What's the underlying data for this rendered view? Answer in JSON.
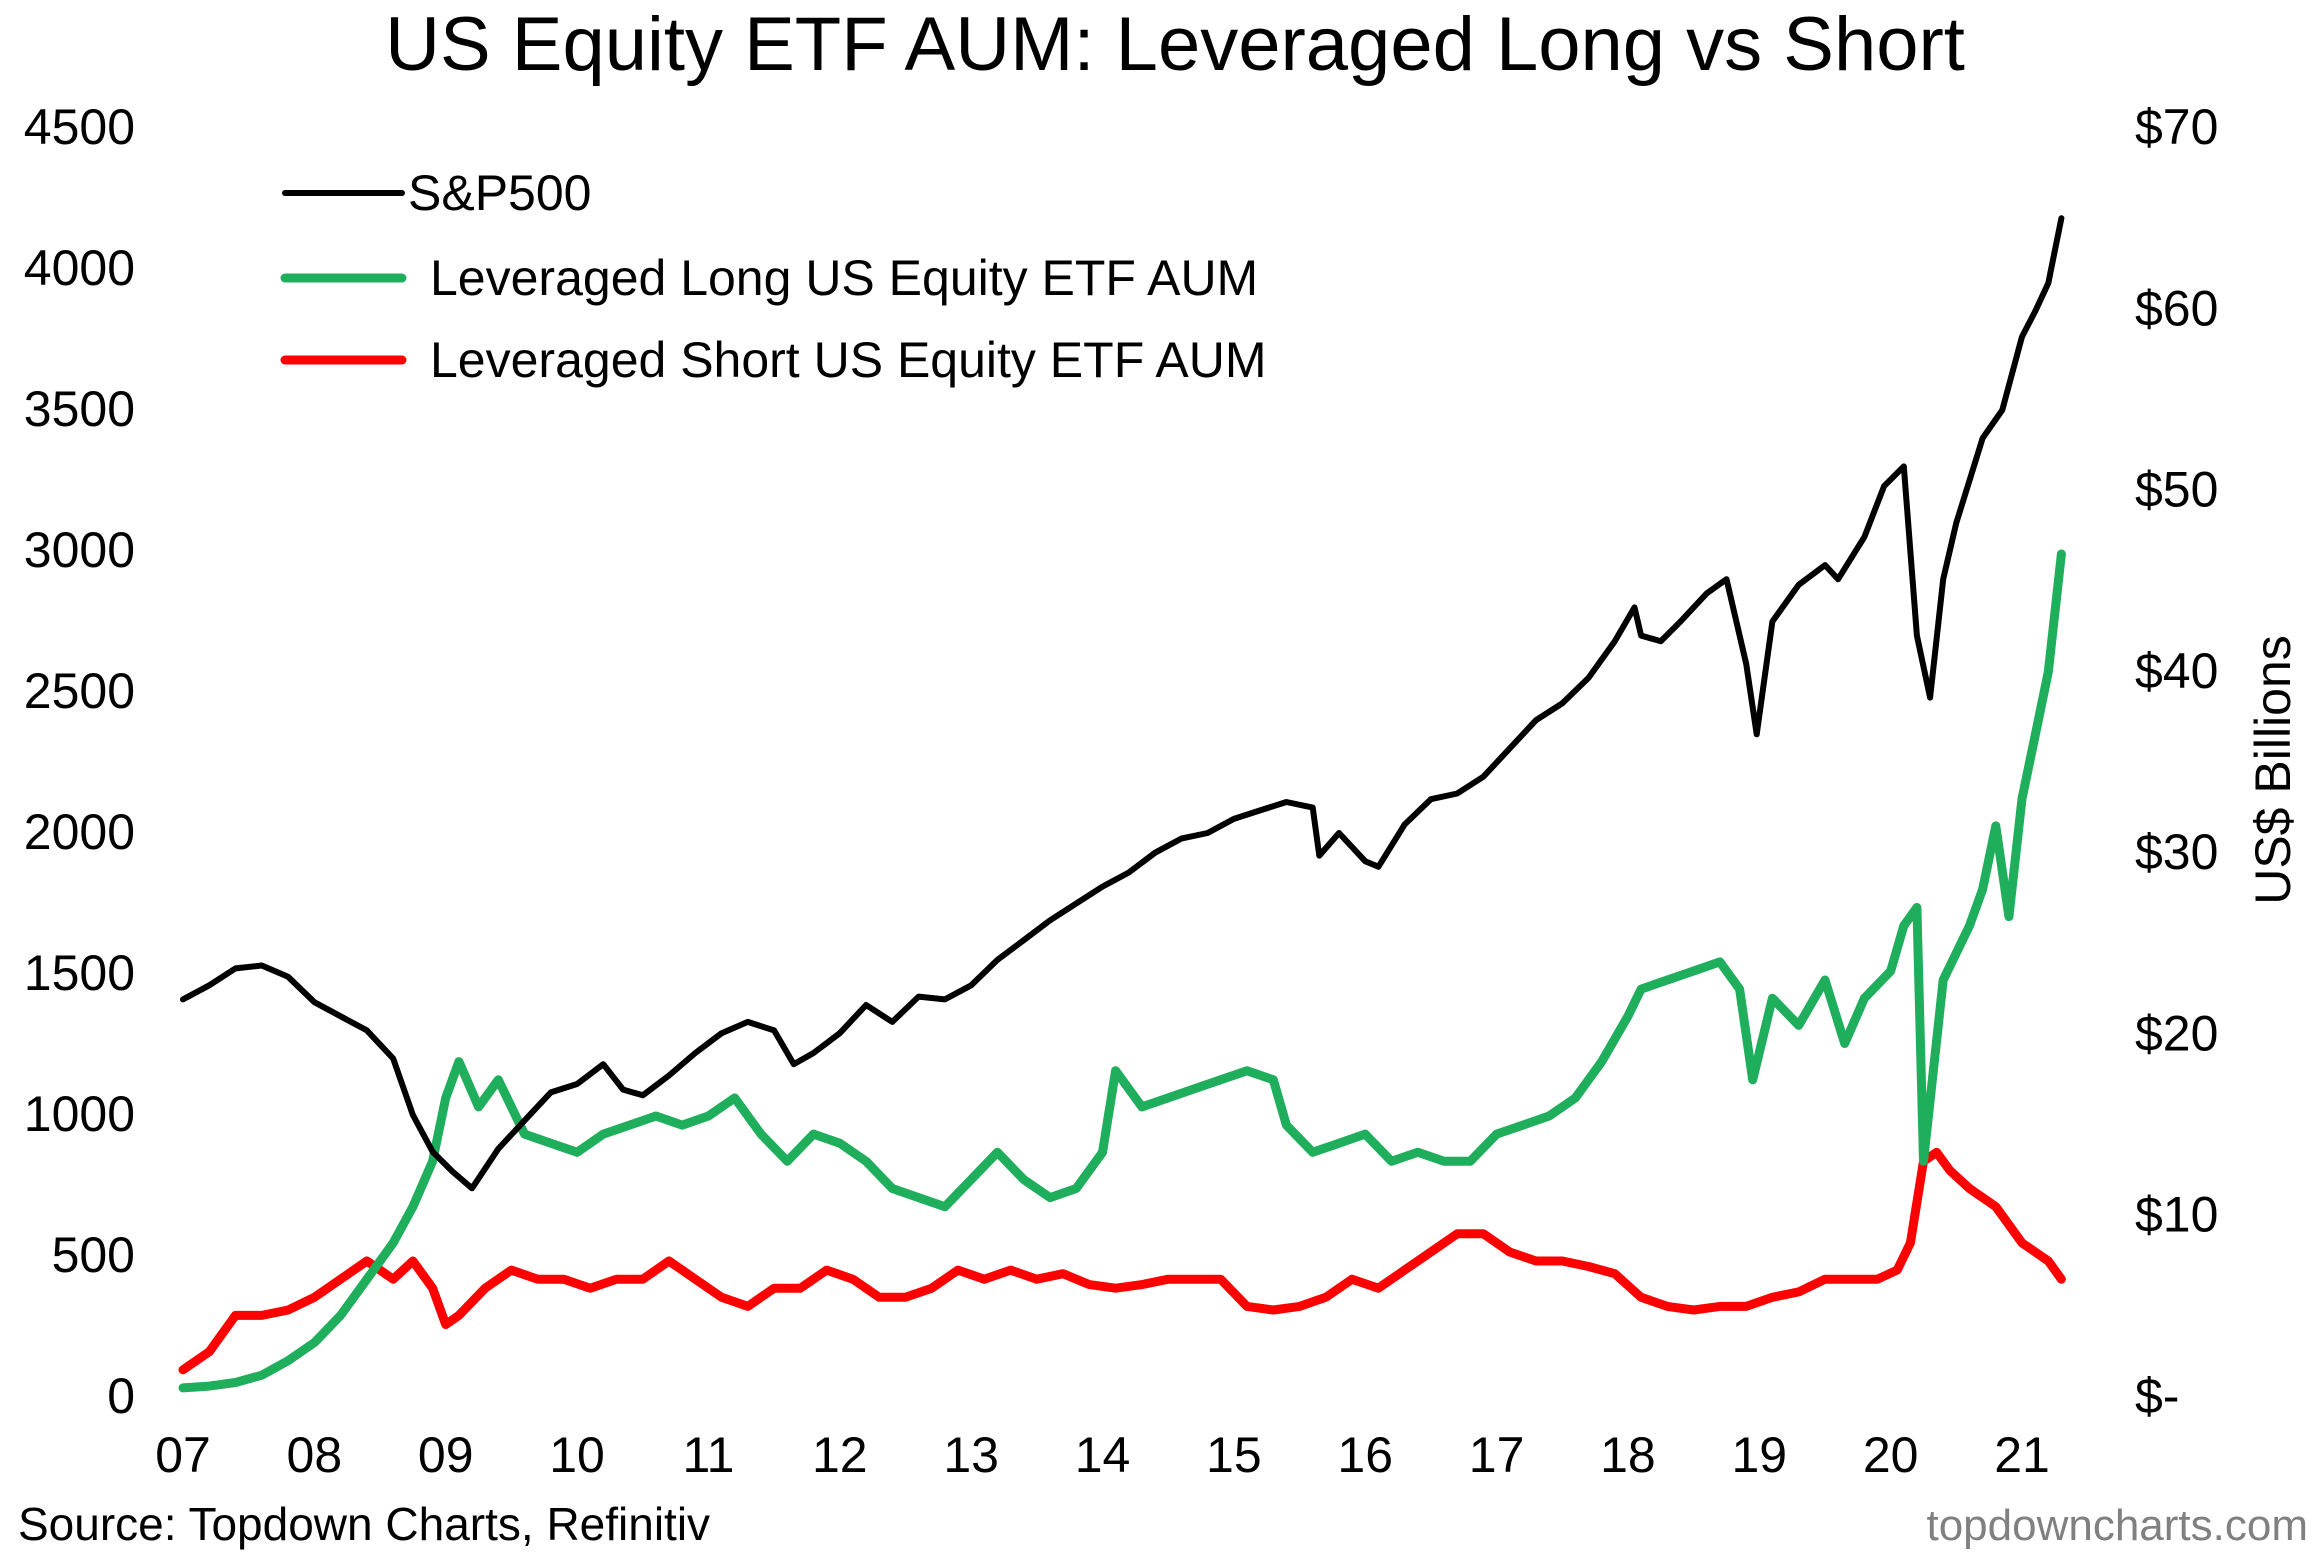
{
  "chart_data": {
    "type": "line",
    "title": "US Equity ETF AUM: Leveraged Long vs Short",
    "source": "Source: Topdown Charts, Refinitiv",
    "watermark": "topdowncharts.com",
    "x_tick_labels": [
      "07",
      "08",
      "09",
      "10",
      "11",
      "12",
      "13",
      "14",
      "15",
      "16",
      "17",
      "18",
      "19",
      "20",
      "21"
    ],
    "x_tick_years": [
      2007,
      2008,
      2009,
      2010,
      2011,
      2012,
      2013,
      2014,
      2015,
      2016,
      2017,
      2018,
      2019,
      2020,
      2021
    ],
    "xlim": [
      2007.0,
      2021.35
    ],
    "y_left": {
      "label": "",
      "lim": [
        0,
        4500
      ],
      "ticks": [
        0,
        500,
        1000,
        1500,
        2000,
        2500,
        3000,
        3500,
        4000,
        4500
      ],
      "tick_labels": [
        "0",
        "500",
        "1000",
        "1500",
        "2000",
        "2500",
        "3000",
        "3500",
        "4000",
        "4500"
      ]
    },
    "y_right": {
      "label": "US$ Billions",
      "lim": [
        0,
        70
      ],
      "ticks": [
        0,
        10,
        20,
        30,
        40,
        50,
        60,
        70
      ],
      "tick_labels": [
        "$-",
        "$10",
        "$20",
        "$30",
        "$40",
        "$50",
        "$60",
        "$70"
      ]
    },
    "legend_position": "top-left",
    "series": [
      {
        "name": "S&P500",
        "axis": "left",
        "color": "#000000",
        "x": [
          2007.0,
          2007.2,
          2007.4,
          2007.6,
          2007.8,
          2008.0,
          2008.2,
          2008.4,
          2008.6,
          2008.75,
          2008.9,
          2009.05,
          2009.2,
          2009.4,
          2009.6,
          2009.8,
          2010.0,
          2010.2,
          2010.35,
          2010.5,
          2010.7,
          2010.9,
          2011.1,
          2011.3,
          2011.5,
          2011.65,
          2011.8,
          2012.0,
          2012.2,
          2012.4,
          2012.6,
          2012.8,
          2013.0,
          2013.2,
          2013.4,
          2013.6,
          2013.8,
          2014.0,
          2014.2,
          2014.4,
          2014.6,
          2014.8,
          2015.0,
          2015.2,
          2015.4,
          2015.6,
          2015.65,
          2015.8,
          2016.0,
          2016.1,
          2016.3,
          2016.5,
          2016.7,
          2016.9,
          2017.1,
          2017.3,
          2017.5,
          2017.7,
          2017.9,
          2018.05,
          2018.1,
          2018.25,
          2018.4,
          2018.6,
          2018.75,
          2018.9,
          2018.98,
          2019.1,
          2019.3,
          2019.5,
          2019.6,
          2019.8,
          2019.95,
          2020.1,
          2020.2,
          2020.3,
          2020.4,
          2020.5,
          2020.6,
          2020.7,
          2020.85,
          2021.0,
          2021.1,
          2021.2,
          2021.3
        ],
        "values": [
          1410,
          1460,
          1520,
          1530,
          1490,
          1400,
          1350,
          1300,
          1200,
          1000,
          870,
          800,
          740,
          880,
          980,
          1080,
          1110,
          1180,
          1090,
          1070,
          1140,
          1220,
          1290,
          1330,
          1300,
          1180,
          1220,
          1290,
          1390,
          1330,
          1420,
          1410,
          1460,
          1550,
          1620,
          1690,
          1750,
          1810,
          1860,
          1930,
          1980,
          2000,
          2050,
          2080,
          2110,
          2090,
          1920,
          2000,
          1900,
          1880,
          2030,
          2120,
          2140,
          2200,
          2300,
          2400,
          2460,
          2550,
          2680,
          2800,
          2700,
          2680,
          2750,
          2850,
          2900,
          2600,
          2350,
          2750,
          2880,
          2950,
          2900,
          3050,
          3230,
          3300,
          2700,
          2480,
          2900,
          3100,
          3250,
          3400,
          3500,
          3760,
          3850,
          3950,
          4180
        ]
      },
      {
        "name": "Leveraged Long US Equity ETF AUM",
        "axis": "right",
        "color": "#1fae5b",
        "x": [
          2007.0,
          2007.2,
          2007.4,
          2007.6,
          2007.8,
          2008.0,
          2008.2,
          2008.4,
          2008.6,
          2008.75,
          2008.9,
          2009.0,
          2009.1,
          2009.25,
          2009.4,
          2009.6,
          2009.8,
          2010.0,
          2010.2,
          2010.4,
          2010.6,
          2010.8,
          2011.0,
          2011.2,
          2011.4,
          2011.6,
          2011.8,
          2012.0,
          2012.2,
          2012.4,
          2012.6,
          2012.8,
          2013.0,
          2013.2,
          2013.4,
          2013.6,
          2013.8,
          2014.0,
          2014.1,
          2014.3,
          2014.5,
          2014.7,
          2014.9,
          2015.1,
          2015.3,
          2015.4,
          2015.6,
          2015.8,
          2016.0,
          2016.2,
          2016.4,
          2016.6,
          2016.8,
          2017.0,
          2017.2,
          2017.4,
          2017.6,
          2017.8,
          2018.0,
          2018.1,
          2018.3,
          2018.5,
          2018.7,
          2018.85,
          2018.95,
          2019.1,
          2019.3,
          2019.5,
          2019.65,
          2019.8,
          2020.0,
          2020.1,
          2020.2,
          2020.25,
          2020.4,
          2020.6,
          2020.7,
          2020.8,
          2020.9,
          2021.0,
          2021.1,
          2021.2,
          2021.3
        ],
        "values": [
          0.5,
          0.6,
          0.8,
          1.2,
          2.0,
          3.0,
          4.5,
          6.5,
          8.5,
          10.5,
          13.0,
          16.5,
          18.5,
          16.0,
          17.5,
          14.5,
          14.0,
          13.5,
          14.5,
          15.0,
          15.5,
          15.0,
          15.5,
          16.5,
          14.5,
          13.0,
          14.5,
          14.0,
          13.0,
          11.5,
          11.0,
          10.5,
          12.0,
          13.5,
          12.0,
          11.0,
          11.5,
          13.5,
          18.0,
          16.0,
          16.5,
          17.0,
          17.5,
          18.0,
          17.5,
          15.0,
          13.5,
          14.0,
          14.5,
          13.0,
          13.5,
          13.0,
          13.0,
          14.5,
          15.0,
          15.5,
          16.5,
          18.5,
          21.0,
          22.5,
          23.0,
          23.5,
          24.0,
          22.5,
          17.5,
          22.0,
          20.5,
          23.0,
          19.5,
          22.0,
          23.5,
          26.0,
          27.0,
          13.0,
          23.0,
          26.0,
          28.0,
          31.5,
          26.5,
          33.0,
          36.5,
          40.0,
          46.5
        ]
      },
      {
        "name": "Leveraged Short US Equity ETF AUM",
        "axis": "right",
        "color": "#ff0000",
        "x": [
          2007.0,
          2007.2,
          2007.4,
          2007.6,
          2007.8,
          2008.0,
          2008.2,
          2008.4,
          2008.6,
          2008.75,
          2008.9,
          2009.0,
          2009.1,
          2009.3,
          2009.5,
          2009.7,
          2009.9,
          2010.1,
          2010.3,
          2010.5,
          2010.7,
          2010.9,
          2011.1,
          2011.3,
          2011.5,
          2011.7,
          2011.9,
          2012.1,
          2012.3,
          2012.5,
          2012.7,
          2012.9,
          2013.1,
          2013.3,
          2013.5,
          2013.7,
          2013.9,
          2014.1,
          2014.3,
          2014.5,
          2014.7,
          2014.9,
          2015.1,
          2015.3,
          2015.5,
          2015.7,
          2015.9,
          2016.1,
          2016.3,
          2016.5,
          2016.7,
          2016.9,
          2017.1,
          2017.3,
          2017.5,
          2017.7,
          2017.9,
          2018.1,
          2018.3,
          2018.5,
          2018.7,
          2018.9,
          2019.1,
          2019.3,
          2019.5,
          2019.7,
          2019.9,
          2020.05,
          2020.15,
          2020.25,
          2020.35,
          2020.45,
          2020.6,
          2020.8,
          2021.0,
          2021.2,
          2021.3
        ],
        "values": [
          1.5,
          2.5,
          4.5,
          4.5,
          4.8,
          5.5,
          6.5,
          7.5,
          6.5,
          7.5,
          6.0,
          4.0,
          4.5,
          6.0,
          7.0,
          6.5,
          6.5,
          6.0,
          6.5,
          6.5,
          7.5,
          6.5,
          5.5,
          5.0,
          6.0,
          6.0,
          7.0,
          6.5,
          5.5,
          5.5,
          6.0,
          7.0,
          6.5,
          7.0,
          6.5,
          6.8,
          6.2,
          6.0,
          6.2,
          6.5,
          6.5,
          6.5,
          5.0,
          4.8,
          5.0,
          5.5,
          6.5,
          6.0,
          7.0,
          8.0,
          9.0,
          9.0,
          8.0,
          7.5,
          7.5,
          7.2,
          6.8,
          5.5,
          5.0,
          4.8,
          5.0,
          5.0,
          5.5,
          5.8,
          6.5,
          6.5,
          6.5,
          7.0,
          8.5,
          13.0,
          13.5,
          12.5,
          11.5,
          10.5,
          8.5,
          7.5,
          6.5
        ]
      }
    ]
  }
}
